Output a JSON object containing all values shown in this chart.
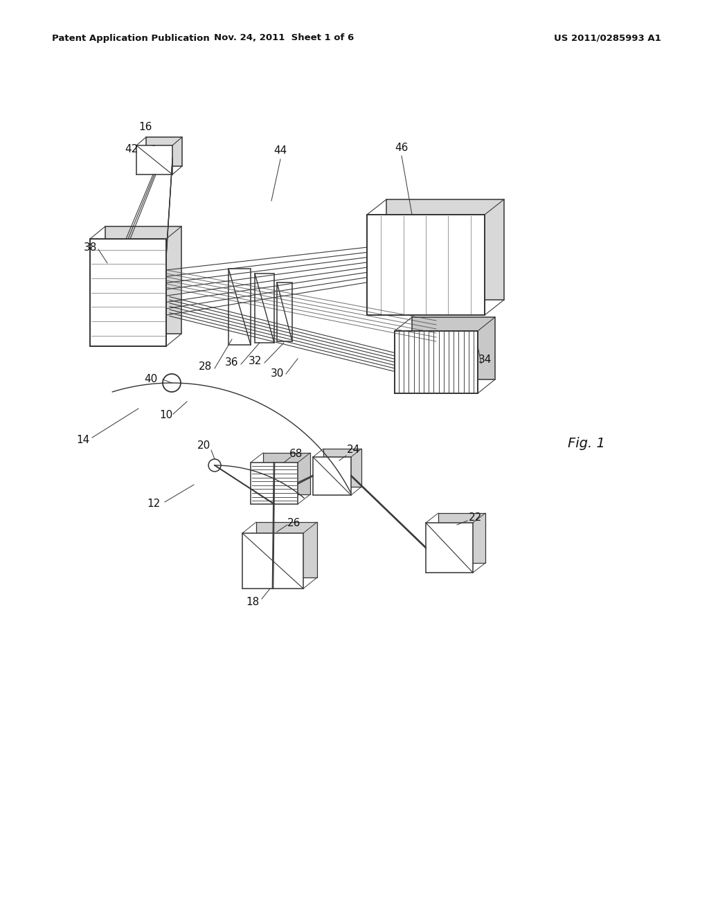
{
  "header_left": "Patent Application Publication",
  "header_mid": "Nov. 24, 2011  Sheet 1 of 6",
  "header_right": "US 2011/0285993 A1",
  "fig_label": "Fig. 1",
  "bg_color": "#ffffff",
  "line_color": "#333333",
  "lw": 1.1
}
